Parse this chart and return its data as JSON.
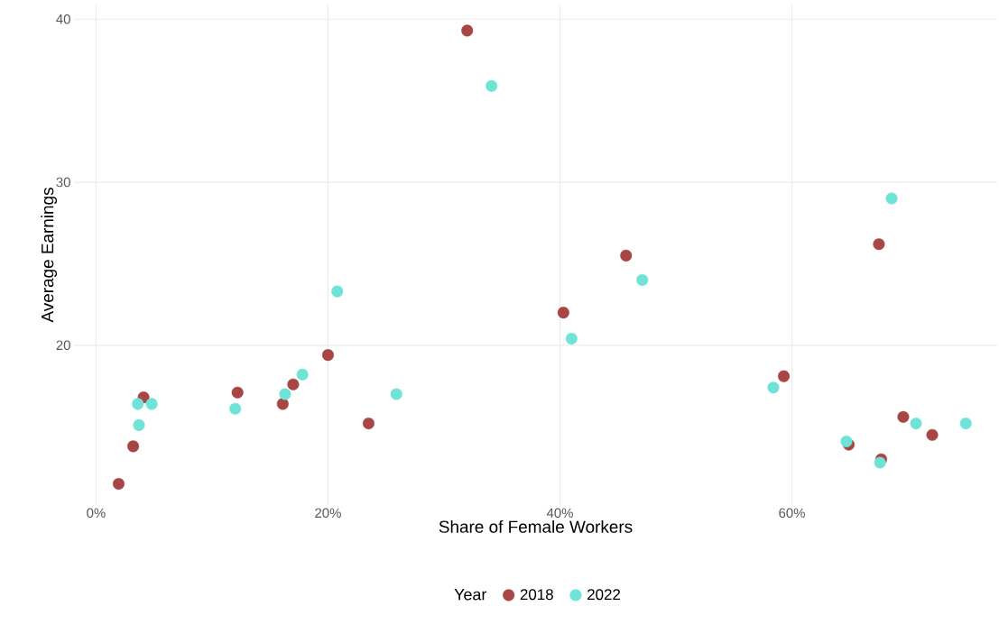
{
  "chart_data": {
    "type": "scatter",
    "xlabel": "Share of Female Workers",
    "ylabel": "Average Earnings",
    "legend_title": "Year",
    "xlim": [
      -1.9,
      77.7
    ],
    "ylim": [
      10.2,
      40.9
    ],
    "xticks": [
      {
        "value": 0,
        "label": "0%"
      },
      {
        "value": 20,
        "label": "20%"
      },
      {
        "value": 40,
        "label": "40%"
      },
      {
        "value": 60,
        "label": "60%"
      }
    ],
    "yticks": [
      20,
      30,
      40
    ],
    "grid": true,
    "legend": "bottom",
    "marker": "circle",
    "series": [
      {
        "name": "2018",
        "color": "#a84545",
        "x": [
          1.95,
          3.2,
          4.1,
          12.2,
          16.1,
          17.0,
          20.0,
          23.5,
          32.0,
          40.3,
          45.7,
          59.3,
          64.9,
          67.5,
          67.7,
          69.6,
          72.1
        ],
        "values": [
          11.5,
          13.8,
          16.8,
          17.1,
          16.4,
          17.6,
          19.4,
          15.2,
          39.3,
          22.0,
          25.5,
          18.1,
          13.9,
          26.2,
          13.0,
          15.6,
          14.5
        ]
      },
      {
        "name": "2022",
        "color": "#70e3d8",
        "x": [
          3.6,
          3.7,
          4.8,
          12.0,
          16.3,
          17.8,
          20.8,
          25.9,
          34.1,
          41.0,
          47.1,
          58.4,
          64.7,
          67.6,
          68.6,
          70.7,
          75.0
        ],
        "values": [
          16.4,
          15.1,
          16.4,
          16.1,
          17.0,
          18.2,
          23.3,
          17.0,
          35.9,
          20.4,
          24.0,
          17.4,
          14.1,
          12.8,
          29.0,
          15.2,
          15.2
        ]
      }
    ]
  }
}
